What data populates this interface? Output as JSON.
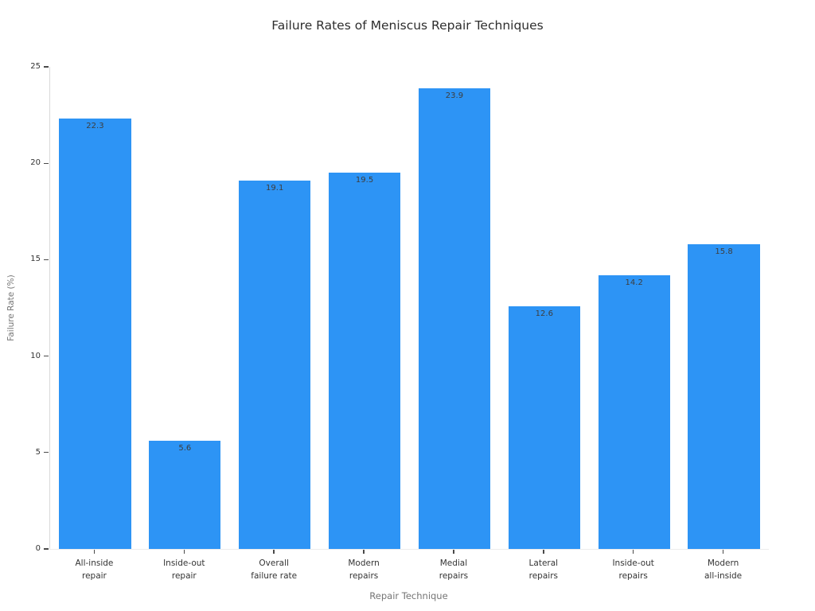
{
  "chart_data": {
    "type": "bar",
    "title": "Failure Rates of Meniscus Repair Techniques",
    "xlabel": "Repair Technique",
    "ylabel": "Failure Rate (%)",
    "categories": [
      "All-inside repair",
      "Inside-out repair",
      "Overall failure rate",
      "Modern repairs",
      "Medial repairs",
      "Lateral repairs",
      "Inside-out repairs",
      "Modern all-inside"
    ],
    "category_label_lines": [
      [
        "All-inside",
        "repair"
      ],
      [
        "Inside-out",
        "repair"
      ],
      [
        "Overall",
        "failure rate"
      ],
      [
        "Modern",
        "repairs"
      ],
      [
        "Medial",
        "repairs"
      ],
      [
        "Lateral",
        "repairs"
      ],
      [
        "Inside-out",
        "repairs"
      ],
      [
        "Modern",
        "all-inside"
      ]
    ],
    "values": [
      22.3,
      5.6,
      19.1,
      19.5,
      23.9,
      12.6,
      14.2,
      15.8
    ],
    "value_labels": [
      "22.3",
      "5.6",
      "19.1",
      "19.5",
      "23.9",
      "12.6",
      "14.2",
      "15.8"
    ],
    "ylim": [
      0,
      25
    ],
    "yticks": [
      0,
      5,
      10,
      15,
      20,
      25
    ],
    "grid": false,
    "legend": false,
    "colors": {
      "bar": "#2D94F5",
      "title_text": "#2e2e2e",
      "tick_text": "#333333",
      "axis_title_text": "#757575",
      "value_label_text": "#3d3d3d",
      "spine": "#d9d9d9",
      "background": "#ffffff"
    }
  }
}
